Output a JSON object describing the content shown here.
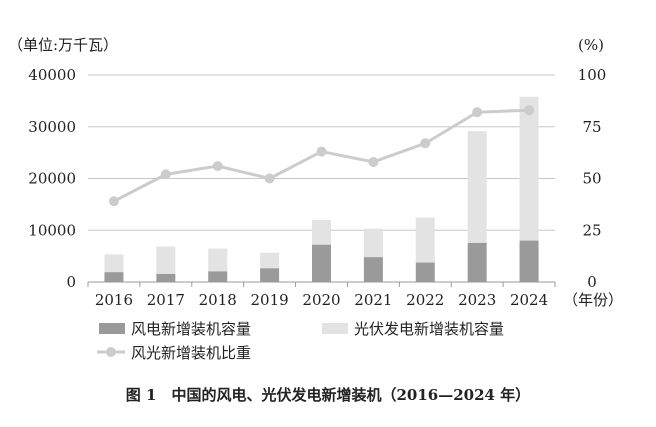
{
  "chart_data": {
    "type": "bar",
    "categories": [
      "2016",
      "2017",
      "2018",
      "2019",
      "2020",
      "2021",
      "2022",
      "2023",
      "2024"
    ],
    "series": [
      {
        "name": "风电新增装机容量",
        "kind": "bar-stacked",
        "axis": "left",
        "color": "#9a9a9a",
        "values": [
          1900,
          1550,
          2050,
          2650,
          7200,
          4800,
          3750,
          7550,
          8000
        ]
      },
      {
        "name": "光伏发电新增装机容量",
        "kind": "bar-stacked",
        "axis": "left",
        "color": "#e3e3e3",
        "values": [
          3450,
          5300,
          4400,
          3000,
          4800,
          5500,
          8700,
          21600,
          27800
        ]
      },
      {
        "name": "风光新增装机比重",
        "kind": "line",
        "axis": "right",
        "color": "#cccccc",
        "values": [
          39,
          52,
          56,
          50,
          63,
          58,
          67,
          82,
          83
        ]
      }
    ],
    "y_left": {
      "label": "（单位:万千瓦）",
      "ticks": [
        "0",
        "10000",
        "20000",
        "30000",
        "40000"
      ],
      "range": [
        0,
        40000
      ]
    },
    "y_right": {
      "label": "(%)",
      "ticks": [
        "0",
        "25",
        "50",
        "75",
        "100"
      ],
      "range": [
        0,
        100
      ]
    },
    "x_suffix": "（年份）",
    "grid": true,
    "legend_position": "bottom"
  },
  "caption": "图 1　中国的风电、光伏发电新增装机（2016—2024 年）"
}
